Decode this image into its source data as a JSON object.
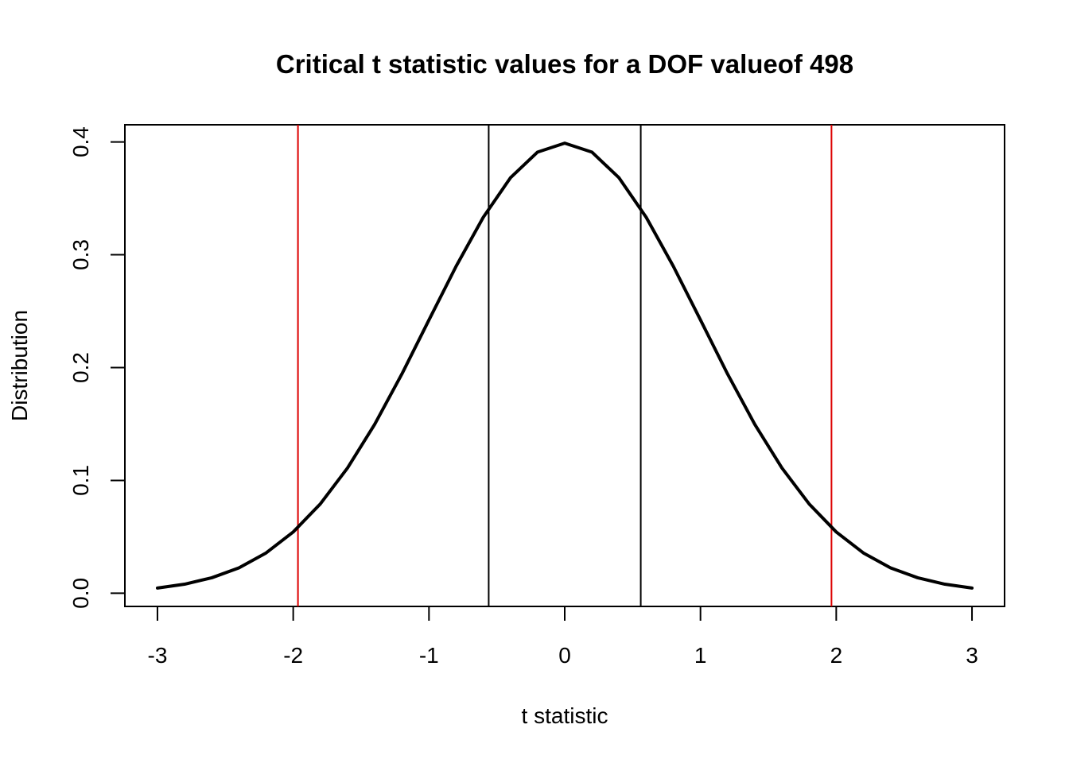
{
  "chart_data": {
    "type": "line",
    "title": "Critical t statistic values for a DOF valueof 498",
    "xlabel": "t statistic",
    "ylabel": "Distribution",
    "xlim": [
      -3.24,
      3.24
    ],
    "ylim": [
      -0.0117,
      0.4152
    ],
    "x_ticks": [
      -3,
      -2,
      -1,
      0,
      1,
      2,
      3
    ],
    "x_tick_labels": [
      "-3",
      "-2",
      "-1",
      "0",
      "1",
      "2",
      "3"
    ],
    "y_ticks": [
      0.0,
      0.1,
      0.2,
      0.3,
      0.4
    ],
    "y_tick_labels": [
      "0.0",
      "0.1",
      "0.2",
      "0.3",
      "0.4"
    ],
    "grid": false,
    "legend": "none",
    "series": [
      {
        "color": "#000000",
        "x": [
          -3.0,
          -2.8,
          -2.6,
          -2.4,
          -2.2,
          -2.0,
          -1.8,
          -1.6,
          -1.4,
          -1.2,
          -1.0,
          -0.8,
          -0.6,
          -0.4,
          -0.2,
          0.0,
          0.2,
          0.4,
          0.6,
          0.8,
          1.0,
          1.2,
          1.4,
          1.6,
          1.8,
          2.0,
          2.2,
          2.4,
          2.6,
          2.8,
          3.0
        ],
        "y": [
          0.0046,
          0.008,
          0.0137,
          0.0225,
          0.0357,
          0.0543,
          0.0792,
          0.111,
          0.1497,
          0.1942,
          0.2422,
          0.2898,
          0.3332,
          0.3682,
          0.391,
          0.3989,
          0.391,
          0.3682,
          0.3332,
          0.2898,
          0.2422,
          0.1942,
          0.1497,
          0.111,
          0.0792,
          0.0543,
          0.0357,
          0.0225,
          0.0137,
          0.008,
          0.0046
        ]
      }
    ],
    "vertical_lines": [
      {
        "x": -1.965,
        "color": "#dd0000"
      },
      {
        "x": 1.965,
        "color": "#dd0000"
      },
      {
        "x": -0.56,
        "color": "#000000"
      },
      {
        "x": 0.56,
        "color": "#000000"
      }
    ]
  }
}
